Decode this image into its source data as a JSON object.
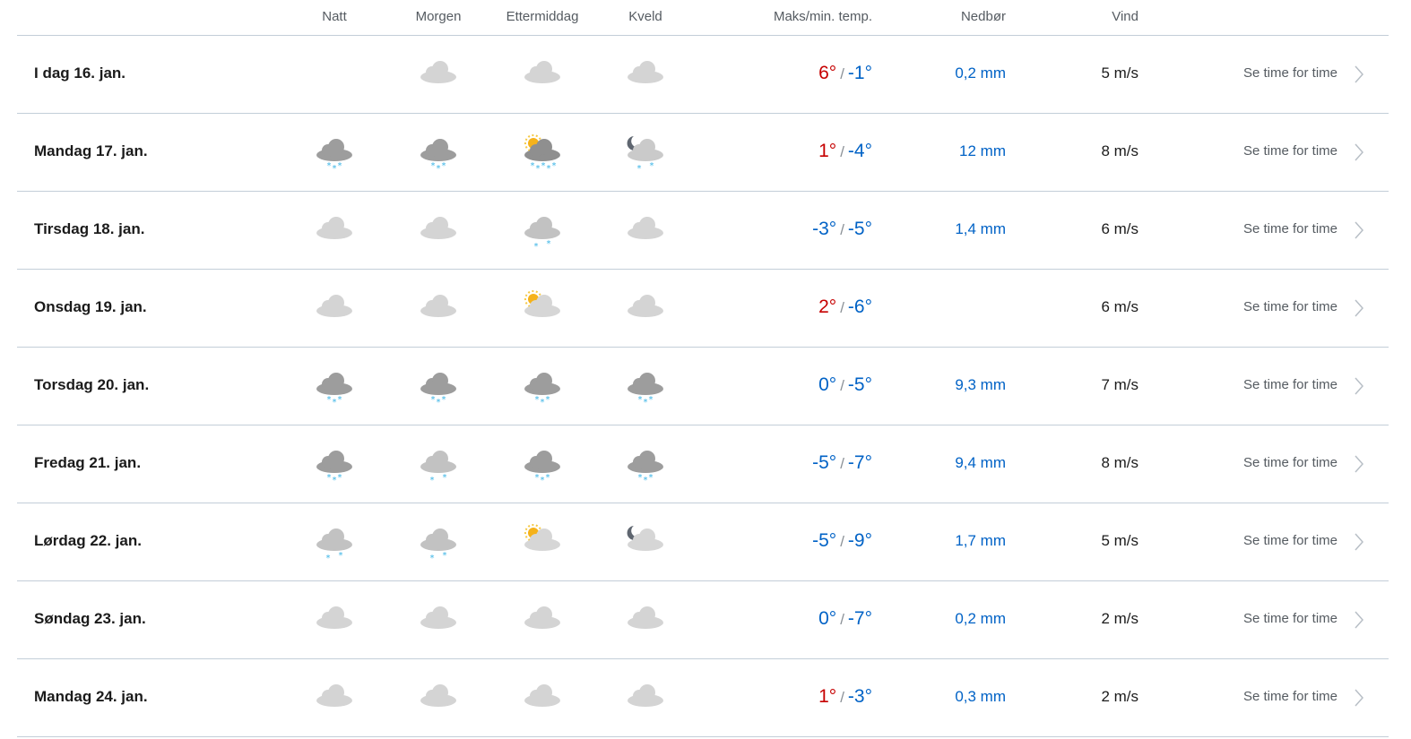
{
  "header": {
    "natt": "Natt",
    "morgen": "Morgen",
    "ettermiddag": "Ettermiddag",
    "kveld": "Kveld",
    "temp": "Maks/min. temp.",
    "precip": "Nedbør",
    "wind": "Vind"
  },
  "colors": {
    "warm": "#c60000",
    "cold": "#0062c6"
  },
  "link_label": "Se time for time",
  "rows": [
    {
      "date": "I dag 16. jan.",
      "icons": [
        "",
        "cloud",
        "cloud",
        "cloud"
      ],
      "max": "6°",
      "min": "-1°",
      "max_positive": true,
      "precip": "0,2 mm",
      "wind": "5 m/s"
    },
    {
      "date": "Mandag 17. jan.",
      "icons": [
        "heavy-snow",
        "heavy-snow",
        "sun-cloud-heavy-snow",
        "moon-cloud-light-snow"
      ],
      "max": "1°",
      "min": "-4°",
      "max_positive": true,
      "precip": "12 mm",
      "wind": "8 m/s"
    },
    {
      "date": "Tirsdag 18. jan.",
      "icons": [
        "cloud",
        "cloud",
        "light-snow",
        "cloud"
      ],
      "max": "-3°",
      "min": "-5°",
      "max_positive": false,
      "precip": "1,4 mm",
      "wind": "6 m/s"
    },
    {
      "date": "Onsdag 19. jan.",
      "icons": [
        "cloud",
        "cloud",
        "sun-cloud",
        "cloud"
      ],
      "max": "2°",
      "min": "-6°",
      "max_positive": true,
      "precip": "",
      "wind": "6 m/s"
    },
    {
      "date": "Torsdag 20. jan.",
      "icons": [
        "heavy-snow",
        "heavy-snow",
        "heavy-snow",
        "heavy-snow"
      ],
      "max": "0°",
      "min": "-5°",
      "max_positive": false,
      "precip": "9,3 mm",
      "wind": "7 m/s"
    },
    {
      "date": "Fredag 21. jan.",
      "icons": [
        "heavy-snow",
        "light-snow",
        "heavy-snow",
        "heavy-snow"
      ],
      "max": "-5°",
      "min": "-7°",
      "max_positive": false,
      "precip": "9,4 mm",
      "wind": "8 m/s"
    },
    {
      "date": "Lørdag 22. jan.",
      "icons": [
        "light-snow",
        "light-snow",
        "sun-cloud",
        "moon-cloud"
      ],
      "max": "-5°",
      "min": "-9°",
      "max_positive": false,
      "precip": "1,7 mm",
      "wind": "5 m/s"
    },
    {
      "date": "Søndag 23. jan.",
      "icons": [
        "cloud",
        "cloud",
        "cloud",
        "cloud"
      ],
      "max": "0°",
      "min": "-7°",
      "max_positive": false,
      "precip": "0,2 mm",
      "wind": "2 m/s"
    },
    {
      "date": "Mandag 24. jan.",
      "icons": [
        "cloud",
        "cloud",
        "cloud",
        "cloud"
      ],
      "max": "1°",
      "min": "-3°",
      "max_positive": true,
      "precip": "0,3 mm",
      "wind": "2 m/s"
    }
  ]
}
